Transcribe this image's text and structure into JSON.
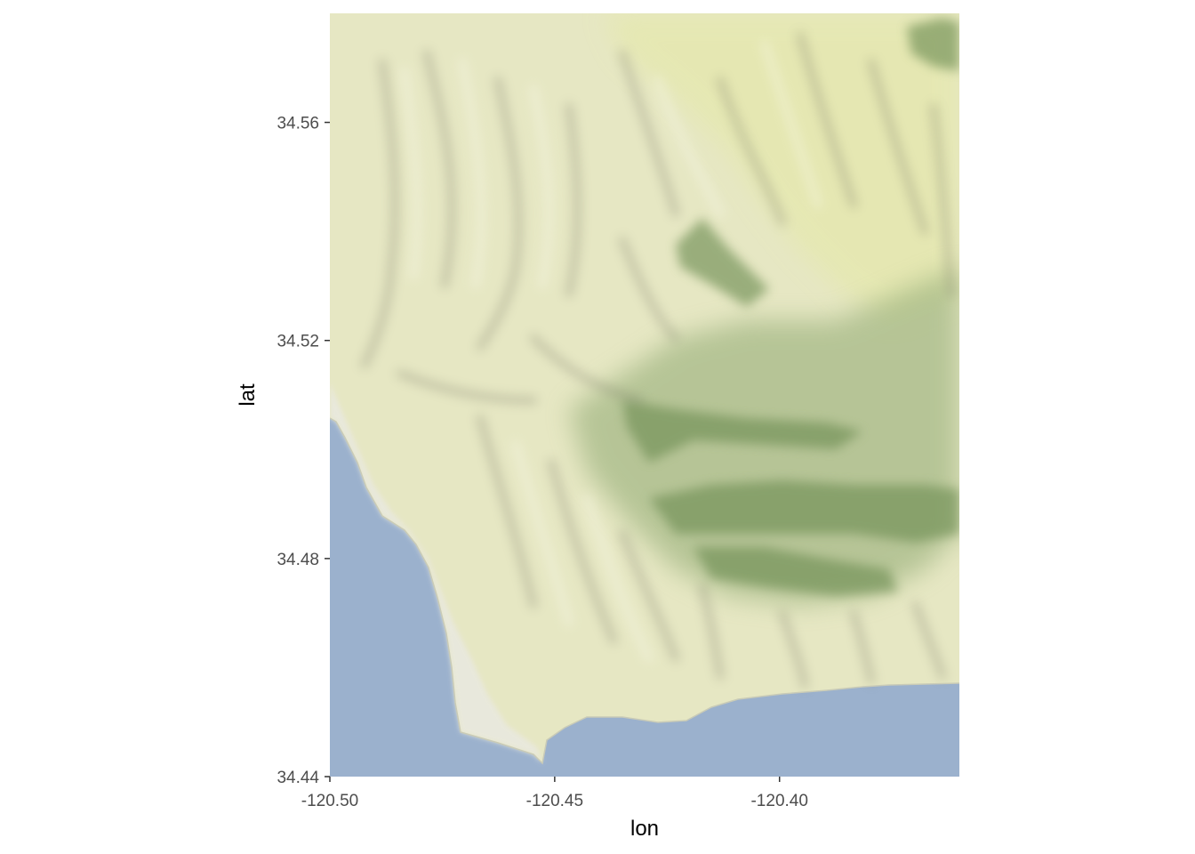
{
  "map": {
    "type": "terrain-basemap",
    "x_axis": {
      "label": "lon",
      "range": [
        -120.5,
        -120.36
      ],
      "ticks": [
        {
          "value": -120.5,
          "label": "-120.50"
        },
        {
          "value": -120.45,
          "label": "-120.45"
        },
        {
          "value": -120.4,
          "label": "-120.40"
        }
      ]
    },
    "y_axis": {
      "label": "lat",
      "range": [
        34.44,
        34.58
      ],
      "ticks": [
        {
          "value": 34.56,
          "label": "34.56"
        },
        {
          "value": 34.52,
          "label": "34.52"
        },
        {
          "value": 34.48,
          "label": "34.48"
        },
        {
          "value": 34.44,
          "label": "34.44"
        }
      ]
    },
    "grid": false,
    "colors": {
      "ocean": "#9bb1cd",
      "lowland": "#e6e7c3",
      "upland": "#e5e8ad",
      "forest": "#8fa972",
      "dense_forest": "#6f8f55",
      "beach": "#e9e9df",
      "axis_text": "#4d4d4d",
      "tick_mark": "#333333"
    }
  }
}
